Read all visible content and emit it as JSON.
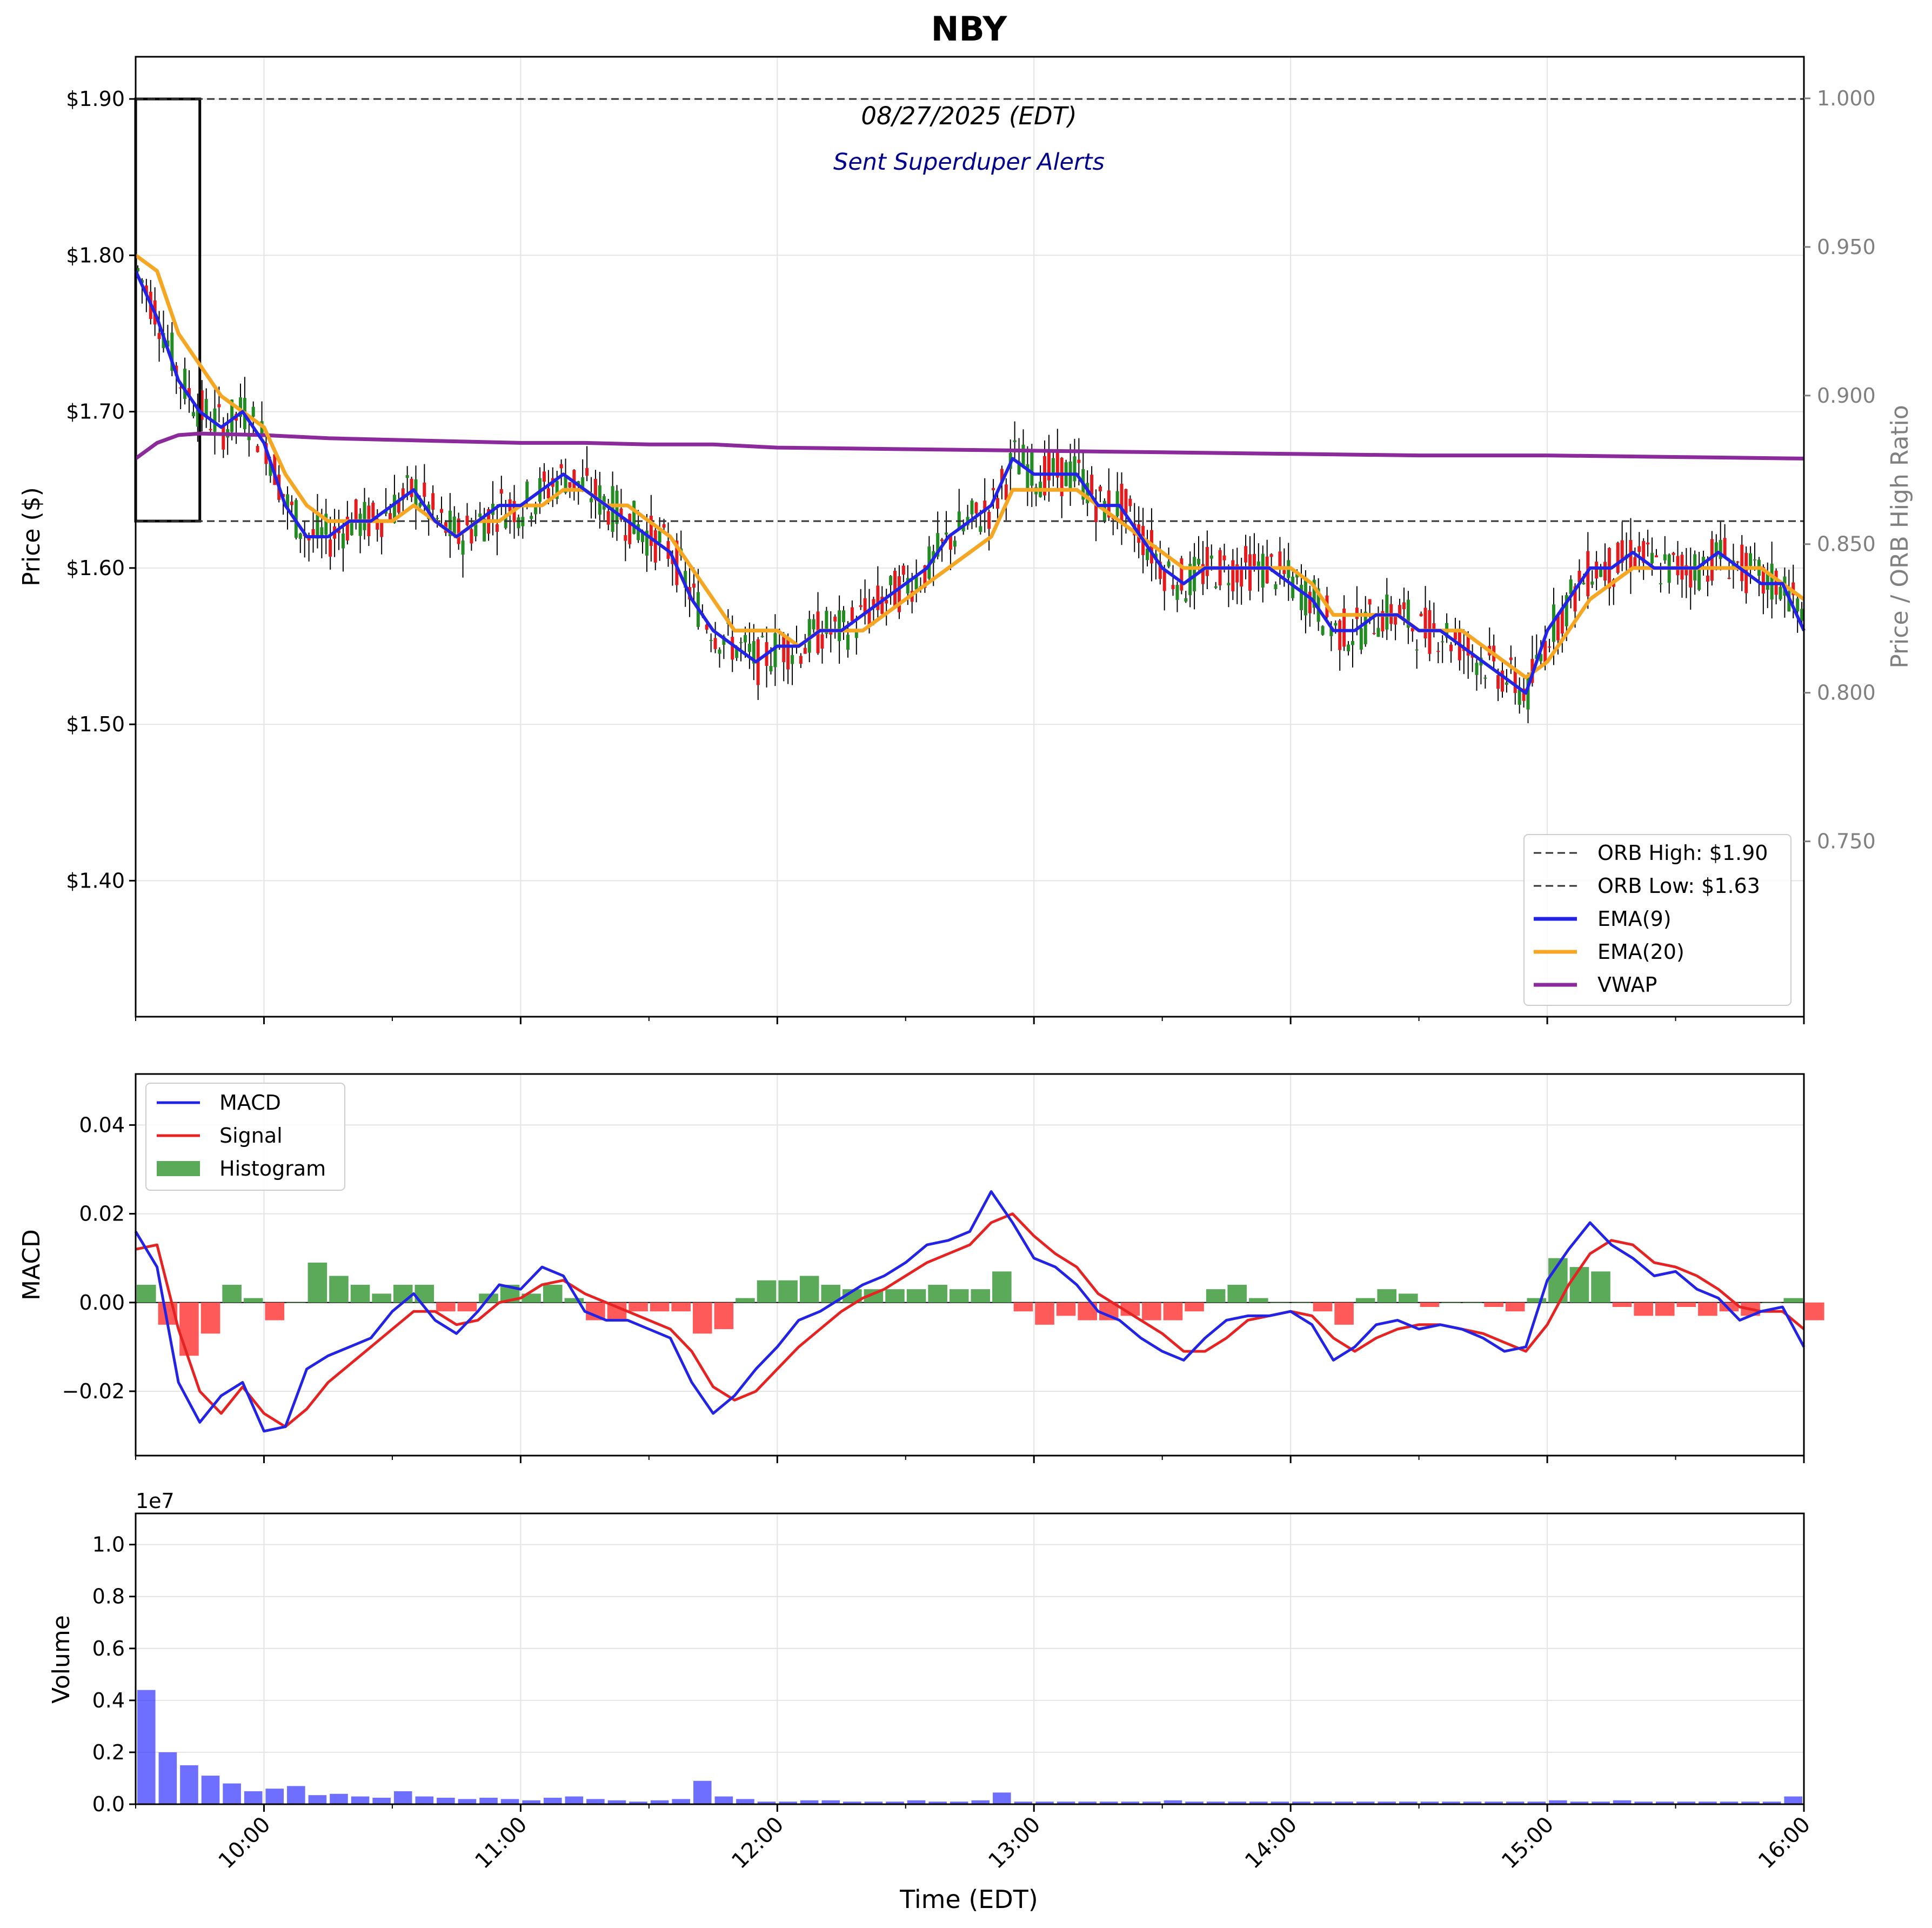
{
  "title": "NBY",
  "annotations": {
    "date": "08/27/2025 (EDT)",
    "alerts": "Sent Superduper Alerts"
  },
  "colors": {
    "ema9": "#2323e6",
    "ema20": "#f5a623",
    "vwap": "#8b2a9a",
    "up_candle": "#228b22",
    "down_candle": "#e41a1c",
    "macd": "#2323e6",
    "signal": "#e62323",
    "hist_pos": "#5aaa5a",
    "hist_neg": "#ff5a5a",
    "volume": "#3030ff"
  },
  "chart_data": [
    {
      "type": "line",
      "panel": "price",
      "title": "NBY",
      "xlabel": "",
      "ylabel": "Price ($)",
      "y2label": "Price / ORB High Ratio",
      "ylim": [
        1.313,
        1.927
      ],
      "y_ticks": [
        "$1.40",
        "$1.50",
        "$1.60",
        "$1.70",
        "$1.80",
        "$1.90"
      ],
      "y_tick_values": [
        1.4,
        1.5,
        1.6,
        1.7,
        1.8,
        1.9
      ],
      "y2_ticks": [
        "0.750",
        "0.800",
        "0.850",
        "0.900",
        "0.950",
        "1.000"
      ],
      "y2_tick_values": [
        0.75,
        0.8,
        0.85,
        0.9,
        0.95,
        1.0
      ],
      "y2lim": [
        0.691,
        1.014
      ],
      "grid": true,
      "legend_position": "lower-right",
      "orb": {
        "high": 1.9,
        "low": 1.63,
        "start": "09:30",
        "end": "09:45"
      },
      "series": [
        {
          "name": "ORB High: $1.90",
          "style": "dashed",
          "key": "orb_high"
        },
        {
          "name": "ORB Low: $1.63",
          "style": "dashed",
          "key": "orb_low"
        },
        {
          "name": "EMA(9)",
          "key": "ema9",
          "x": [
            "09:30",
            "09:35",
            "09:40",
            "09:45",
            "09:50",
            "09:55",
            "10:00",
            "10:05",
            "10:10",
            "10:15",
            "10:20",
            "10:25",
            "10:30",
            "10:35",
            "10:40",
            "10:45",
            "10:50",
            "10:55",
            "11:00",
            "11:05",
            "11:10",
            "11:15",
            "11:20",
            "11:25",
            "11:30",
            "11:35",
            "11:40",
            "11:45",
            "11:50",
            "11:55",
            "12:00",
            "12:05",
            "12:10",
            "12:15",
            "12:20",
            "12:25",
            "12:30",
            "12:35",
            "12:40",
            "12:45",
            "12:50",
            "12:55",
            "13:00",
            "13:05",
            "13:10",
            "13:15",
            "13:20",
            "13:25",
            "13:30",
            "13:35",
            "13:40",
            "13:45",
            "13:50",
            "13:55",
            "14:00",
            "14:05",
            "14:10",
            "14:15",
            "14:20",
            "14:25",
            "14:30",
            "14:35",
            "14:40",
            "14:45",
            "14:50",
            "14:55",
            "15:00",
            "15:05",
            "15:10",
            "15:15",
            "15:20",
            "15:25",
            "15:30",
            "15:35",
            "15:40",
            "15:45",
            "15:50",
            "15:55",
            "16:00"
          ],
          "y": [
            1.79,
            1.76,
            1.72,
            1.7,
            1.69,
            1.7,
            1.68,
            1.64,
            1.62,
            1.62,
            1.63,
            1.63,
            1.64,
            1.65,
            1.63,
            1.62,
            1.63,
            1.64,
            1.64,
            1.65,
            1.66,
            1.65,
            1.64,
            1.63,
            1.62,
            1.61,
            1.58,
            1.56,
            1.55,
            1.54,
            1.55,
            1.55,
            1.56,
            1.56,
            1.57,
            1.58,
            1.59,
            1.6,
            1.62,
            1.63,
            1.64,
            1.67,
            1.66,
            1.66,
            1.66,
            1.64,
            1.64,
            1.62,
            1.6,
            1.59,
            1.6,
            1.6,
            1.6,
            1.6,
            1.59,
            1.58,
            1.56,
            1.56,
            1.57,
            1.57,
            1.56,
            1.56,
            1.55,
            1.54,
            1.53,
            1.52,
            1.56,
            1.58,
            1.6,
            1.6,
            1.61,
            1.6,
            1.6,
            1.6,
            1.61,
            1.6,
            1.59,
            1.59,
            1.56
          ]
        },
        {
          "name": "EMA(20)",
          "key": "ema20",
          "x": [
            "09:30",
            "09:35",
            "09:40",
            "09:45",
            "09:50",
            "09:55",
            "10:00",
            "10:05",
            "10:10",
            "10:15",
            "10:20",
            "10:25",
            "10:30",
            "10:35",
            "10:40",
            "10:45",
            "10:50",
            "10:55",
            "11:00",
            "11:05",
            "11:10",
            "11:15",
            "11:20",
            "11:25",
            "11:30",
            "11:35",
            "11:40",
            "11:45",
            "11:50",
            "11:55",
            "12:00",
            "12:05",
            "12:10",
            "12:15",
            "12:20",
            "12:25",
            "12:30",
            "12:35",
            "12:40",
            "12:45",
            "12:50",
            "12:55",
            "13:00",
            "13:05",
            "13:10",
            "13:15",
            "13:20",
            "13:25",
            "13:30",
            "13:35",
            "13:40",
            "13:45",
            "13:50",
            "13:55",
            "14:00",
            "14:05",
            "14:10",
            "14:15",
            "14:20",
            "14:25",
            "14:30",
            "14:35",
            "14:40",
            "14:45",
            "14:50",
            "14:55",
            "15:00",
            "15:05",
            "15:10",
            "15:15",
            "15:20",
            "15:25",
            "15:30",
            "15:35",
            "15:40",
            "15:45",
            "15:50",
            "15:55",
            "16:00"
          ],
          "y": [
            1.8,
            1.79,
            1.75,
            1.73,
            1.71,
            1.7,
            1.69,
            1.66,
            1.64,
            1.63,
            1.63,
            1.63,
            1.63,
            1.64,
            1.63,
            1.62,
            1.63,
            1.63,
            1.64,
            1.64,
            1.65,
            1.65,
            1.64,
            1.64,
            1.63,
            1.62,
            1.6,
            1.58,
            1.56,
            1.56,
            1.56,
            1.55,
            1.56,
            1.56,
            1.56,
            1.57,
            1.58,
            1.59,
            1.6,
            1.61,
            1.62,
            1.65,
            1.65,
            1.65,
            1.65,
            1.64,
            1.63,
            1.62,
            1.61,
            1.6,
            1.6,
            1.6,
            1.6,
            1.6,
            1.6,
            1.59,
            1.57,
            1.57,
            1.57,
            1.57,
            1.56,
            1.56,
            1.56,
            1.55,
            1.54,
            1.53,
            1.54,
            1.56,
            1.58,
            1.59,
            1.6,
            1.6,
            1.6,
            1.6,
            1.6,
            1.6,
            1.6,
            1.59,
            1.58
          ]
        },
        {
          "name": "VWAP",
          "key": "vwap",
          "x": [
            "09:30",
            "09:35",
            "09:40",
            "09:45",
            "10:00",
            "10:15",
            "10:30",
            "10:45",
            "11:00",
            "11:15",
            "11:30",
            "11:45",
            "12:00",
            "12:30",
            "13:00",
            "13:30",
            "14:00",
            "14:30",
            "15:00",
            "15:30",
            "16:00"
          ],
          "y": [
            1.67,
            1.68,
            1.685,
            1.686,
            1.685,
            1.683,
            1.682,
            1.681,
            1.68,
            1.68,
            1.679,
            1.679,
            1.677,
            1.676,
            1.675,
            1.674,
            1.673,
            1.672,
            1.672,
            1.671,
            1.67
          ]
        }
      ]
    },
    {
      "type": "line",
      "panel": "macd",
      "ylabel": "MACD",
      "ylim": [
        -0.0345,
        0.0515
      ],
      "y_ticks": [
        "−0.02",
        "0.00",
        "0.02",
        "0.04"
      ],
      "y_tick_values": [
        -0.02,
        0.0,
        0.02,
        0.04
      ],
      "grid": true,
      "legend_position": "top-left",
      "x": [
        "09:30",
        "09:35",
        "09:40",
        "09:45",
        "09:50",
        "09:55",
        "10:00",
        "10:05",
        "10:10",
        "10:15",
        "10:20",
        "10:25",
        "10:30",
        "10:35",
        "10:40",
        "10:45",
        "10:50",
        "10:55",
        "11:00",
        "11:05",
        "11:10",
        "11:15",
        "11:20",
        "11:25",
        "11:30",
        "11:35",
        "11:40",
        "11:45",
        "11:50",
        "11:55",
        "12:00",
        "12:05",
        "12:10",
        "12:15",
        "12:20",
        "12:25",
        "12:30",
        "12:35",
        "12:40",
        "12:45",
        "12:50",
        "12:55",
        "13:00",
        "13:05",
        "13:10",
        "13:15",
        "13:20",
        "13:25",
        "13:30",
        "13:35",
        "13:40",
        "13:45",
        "13:50",
        "13:55",
        "14:00",
        "14:05",
        "14:10",
        "14:15",
        "14:20",
        "14:25",
        "14:30",
        "14:35",
        "14:40",
        "14:45",
        "14:50",
        "14:55",
        "15:00",
        "15:05",
        "15:10",
        "15:15",
        "15:20",
        "15:25",
        "15:30",
        "15:35",
        "15:40",
        "15:45",
        "15:50",
        "15:55",
        "16:00"
      ],
      "series": [
        {
          "name": "MACD",
          "key": "macd",
          "y": [
            0.016,
            0.008,
            -0.018,
            -0.027,
            -0.021,
            -0.018,
            -0.029,
            -0.028,
            -0.015,
            -0.012,
            -0.01,
            -0.008,
            -0.002,
            0.002,
            -0.004,
            -0.007,
            -0.002,
            0.004,
            0.003,
            0.008,
            0.006,
            -0.002,
            -0.004,
            -0.004,
            -0.006,
            -0.008,
            -0.018,
            -0.025,
            -0.021,
            -0.015,
            -0.01,
            -0.004,
            -0.002,
            0.001,
            0.004,
            0.006,
            0.009,
            0.013,
            0.014,
            0.016,
            0.025,
            0.018,
            0.01,
            0.008,
            0.004,
            -0.002,
            -0.004,
            -0.008,
            -0.011,
            -0.013,
            -0.008,
            -0.004,
            -0.003,
            -0.003,
            -0.002,
            -0.005,
            -0.013,
            -0.01,
            -0.005,
            -0.004,
            -0.006,
            -0.005,
            -0.006,
            -0.008,
            -0.011,
            -0.01,
            0.005,
            0.012,
            0.018,
            0.013,
            0.01,
            0.006,
            0.007,
            0.003,
            0.001,
            -0.004,
            -0.002,
            -0.001,
            -0.01
          ]
        },
        {
          "name": "Signal",
          "key": "signal",
          "y": [
            0.012,
            0.013,
            -0.006,
            -0.02,
            -0.025,
            -0.019,
            -0.025,
            -0.028,
            -0.024,
            -0.018,
            -0.014,
            -0.01,
            -0.006,
            -0.002,
            -0.002,
            -0.005,
            -0.004,
            0.0,
            0.001,
            0.004,
            0.005,
            0.002,
            0.0,
            -0.002,
            -0.004,
            -0.006,
            -0.011,
            -0.019,
            -0.022,
            -0.02,
            -0.015,
            -0.01,
            -0.006,
            -0.002,
            0.001,
            0.003,
            0.006,
            0.009,
            0.011,
            0.013,
            0.018,
            0.02,
            0.015,
            0.011,
            0.008,
            0.002,
            -0.001,
            -0.004,
            -0.007,
            -0.011,
            -0.011,
            -0.008,
            -0.004,
            -0.003,
            -0.002,
            -0.003,
            -0.008,
            -0.011,
            -0.008,
            -0.006,
            -0.005,
            -0.005,
            -0.006,
            -0.007,
            -0.009,
            -0.011,
            -0.005,
            0.004,
            0.011,
            0.014,
            0.013,
            0.009,
            0.008,
            0.006,
            0.003,
            -0.001,
            -0.002,
            -0.002,
            -0.006
          ]
        },
        {
          "name": "Histogram",
          "key": "hist",
          "y": [
            0.004,
            -0.005,
            -0.012,
            -0.007,
            0.004,
            0.001,
            -0.004,
            0.0,
            0.009,
            0.006,
            0.004,
            0.002,
            0.004,
            0.004,
            -0.002,
            -0.002,
            0.002,
            0.004,
            0.002,
            0.004,
            0.001,
            -0.004,
            -0.004,
            -0.002,
            -0.002,
            -0.002,
            -0.007,
            -0.006,
            0.001,
            0.005,
            0.005,
            0.006,
            0.004,
            0.003,
            0.003,
            0.003,
            0.003,
            0.004,
            0.003,
            0.003,
            0.007,
            -0.002,
            -0.005,
            -0.003,
            -0.004,
            -0.004,
            -0.003,
            -0.004,
            -0.004,
            -0.002,
            0.003,
            0.004,
            0.001,
            0.0,
            0.0,
            -0.002,
            -0.005,
            0.001,
            0.003,
            0.002,
            -0.001,
            0.0,
            0.0,
            -0.001,
            -0.002,
            0.001,
            0.01,
            0.008,
            0.007,
            -0.001,
            -0.003,
            -0.003,
            -0.001,
            -0.003,
            -0.002,
            -0.003,
            0.0,
            0.001,
            -0.004
          ]
        }
      ]
    },
    {
      "type": "bar",
      "panel": "volume",
      "ylabel": "Volume",
      "xlabel": "Time (EDT)",
      "ylim": [
        0,
        11200000
      ],
      "y_scale_label": "1e7",
      "y_ticks": [
        "0.0",
        "0.2",
        "0.4",
        "0.6",
        "0.8",
        "1.0"
      ],
      "y_tick_values": [
        0,
        2000000,
        4000000,
        6000000,
        8000000,
        10000000
      ],
      "x_ticks": [
        "10:00",
        "11:00",
        "12:00",
        "13:00",
        "14:00",
        "15:00",
        "16:00"
      ],
      "grid": true,
      "x": [
        "09:30",
        "09:35",
        "09:40",
        "09:45",
        "09:50",
        "09:55",
        "10:00",
        "10:05",
        "10:10",
        "10:15",
        "10:20",
        "10:25",
        "10:30",
        "10:35",
        "10:40",
        "10:45",
        "10:50",
        "10:55",
        "11:00",
        "11:05",
        "11:10",
        "11:15",
        "11:20",
        "11:25",
        "11:30",
        "11:35",
        "11:40",
        "11:45",
        "11:50",
        "11:55",
        "12:00",
        "12:05",
        "12:10",
        "12:15",
        "12:20",
        "12:25",
        "12:30",
        "12:35",
        "12:40",
        "12:45",
        "12:50",
        "12:55",
        "13:00",
        "13:05",
        "13:10",
        "13:15",
        "13:20",
        "13:25",
        "13:30",
        "13:35",
        "13:40",
        "13:45",
        "13:50",
        "13:55",
        "14:00",
        "14:05",
        "14:10",
        "14:15",
        "14:20",
        "14:25",
        "14:30",
        "14:35",
        "14:40",
        "14:45",
        "14:50",
        "14:55",
        "15:00",
        "15:05",
        "15:10",
        "15:15",
        "15:20",
        "15:25",
        "15:30",
        "15:35",
        "15:40",
        "15:45",
        "15:50",
        "15:55"
      ],
      "values": [
        4400000,
        2000000,
        1500000,
        1100000,
        800000,
        500000,
        600000,
        700000,
        350000,
        400000,
        300000,
        250000,
        500000,
        300000,
        250000,
        200000,
        250000,
        200000,
        150000,
        250000,
        300000,
        200000,
        150000,
        100000,
        150000,
        200000,
        900000,
        300000,
        200000,
        100000,
        100000,
        150000,
        150000,
        100000,
        100000,
        100000,
        150000,
        100000,
        100000,
        150000,
        450000,
        100000,
        100000,
        100000,
        100000,
        100000,
        100000,
        100000,
        150000,
        100000,
        100000,
        100000,
        100000,
        100000,
        100000,
        100000,
        100000,
        100000,
        100000,
        100000,
        100000,
        100000,
        100000,
        100000,
        100000,
        100000,
        150000,
        100000,
        100000,
        150000,
        100000,
        100000,
        100000,
        100000,
        100000,
        100000,
        100000,
        300000
      ]
    }
  ],
  "x_axis": {
    "start": "09:30",
    "end": "16:00",
    "tick_labels": [
      "10:00",
      "11:00",
      "12:00",
      "13:00",
      "14:00",
      "15:00",
      "16:00"
    ]
  }
}
